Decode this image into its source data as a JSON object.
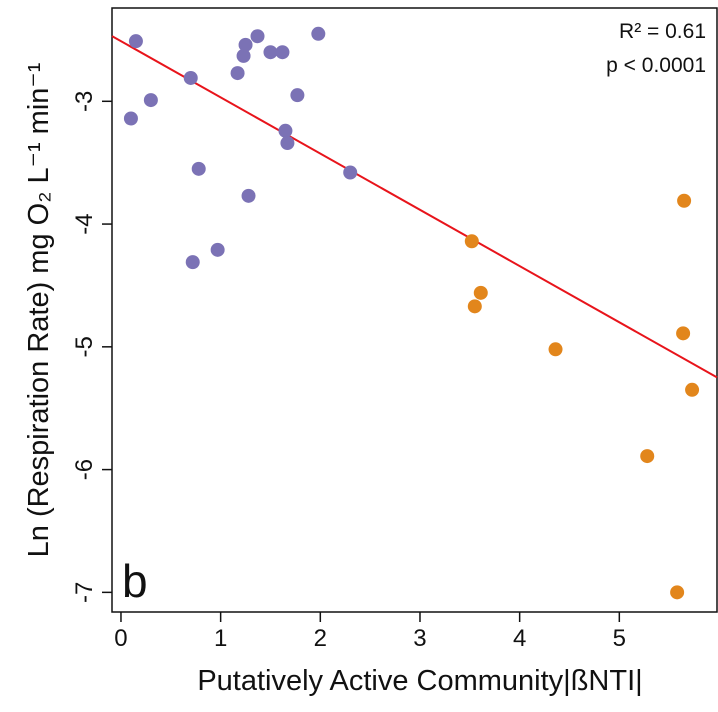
{
  "chart_data": {
    "type": "scatter",
    "x_label": "Putatively Active Community|ßNTI|",
    "y_label": "Ln (Respiration Rate) mg O₂ L⁻¹ min⁻¹",
    "annotations": [
      "R² = 0.61",
      "p < 0.0001"
    ],
    "panel_label": "b",
    "xlim": [
      -0.09,
      5.98
    ],
    "ylim": [
      -7.16,
      -2.24
    ],
    "xticks": [
      0,
      1,
      2,
      3,
      4,
      5
    ],
    "yticks": [
      -7,
      -6,
      -5,
      -4,
      -3
    ],
    "series": [
      {
        "color": "#7b72b5",
        "x": [
          0.15,
          0.1,
          0.3,
          0.7,
          0.78,
          0.72,
          0.97,
          1.17,
          1.23,
          1.25,
          1.37,
          1.5,
          1.62,
          1.28,
          1.65,
          1.67,
          1.77,
          1.98,
          2.3
        ],
        "values": [
          -2.51,
          -3.14,
          -2.99,
          -2.81,
          -3.55,
          -4.31,
          -4.21,
          -2.77,
          -2.63,
          -2.54,
          -2.47,
          -2.6,
          -2.6,
          -3.77,
          -3.24,
          -3.34,
          -2.95,
          -2.45,
          -3.58
        ]
      },
      {
        "color": "#e2861c",
        "x": [
          3.52,
          3.61,
          3.55,
          4.36,
          5.65,
          5.64,
          5.73,
          5.28,
          5.58
        ],
        "values": [
          -4.14,
          -4.56,
          -4.67,
          -5.02,
          -3.81,
          -4.89,
          -5.35,
          -5.89,
          -7.0
        ]
      }
    ],
    "fit": {
      "intercept": -2.51,
      "slope": -0.458,
      "color": "#e8141b"
    }
  }
}
